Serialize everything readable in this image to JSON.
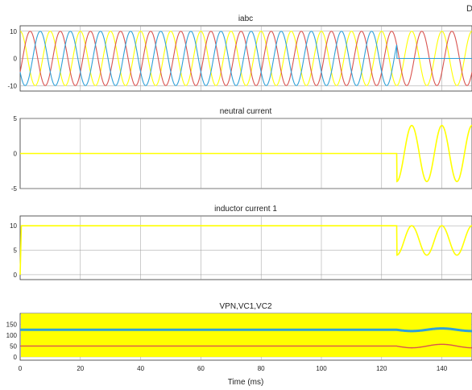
{
  "corner_mark": "D",
  "xlabel": "Time (ms)",
  "x_ticks": [
    0,
    20,
    40,
    60,
    80,
    100,
    120,
    140
  ],
  "xlim": [
    0,
    150
  ],
  "chart_data": [
    {
      "type": "line",
      "title": "iabc",
      "ylim": [
        -12,
        12
      ],
      "y_ticks": [
        -10,
        0,
        10
      ],
      "grid": true,
      "series": [
        {
          "color": "#ffff00",
          "phase_deg": 90,
          "amplitude": 10,
          "frequency_hz": 100,
          "after_125ms": "continues"
        },
        {
          "color": "#d9534f",
          "phase_deg": -30,
          "amplitude": 10,
          "frequency_hz": 100,
          "after_125ms": "continues"
        },
        {
          "color": "#2fa0d8",
          "phase_deg": 210,
          "amplitude": 10,
          "frequency_hz": 100,
          "after_125ms": "drops to 0"
        }
      ]
    },
    {
      "type": "line",
      "title": "neutral current",
      "ylim": [
        -5,
        5
      ],
      "y_ticks": [
        -5,
        0,
        5
      ],
      "grid": true,
      "series": [
        {
          "color": "#ffff00",
          "value_before_125ms": 0,
          "after_125ms": "sine, amplitude 4 A, 100 Hz"
        }
      ]
    },
    {
      "type": "line",
      "title": "inductor current 1",
      "ylim": [
        -1,
        12
      ],
      "y_ticks": [
        0,
        5,
        10
      ],
      "grid": true,
      "series": [
        {
          "color": "#ffff00",
          "value_before_125ms": 10,
          "after_125ms": "oscillates between 4 and 10"
        }
      ]
    },
    {
      "type": "area",
      "title": "VPN,VC1,VC2",
      "ylim": [
        -15,
        200
      ],
      "y_ticks": [
        0,
        50,
        100,
        150
      ],
      "grid": true,
      "series": [
        {
          "color": "#ffff00",
          "band": [
            0,
            200
          ],
          "note": "VPN ripple band"
        },
        {
          "color": "#2fa0d8",
          "value": 125
        },
        {
          "color": "#d9534f",
          "value": 50
        }
      ]
    }
  ]
}
